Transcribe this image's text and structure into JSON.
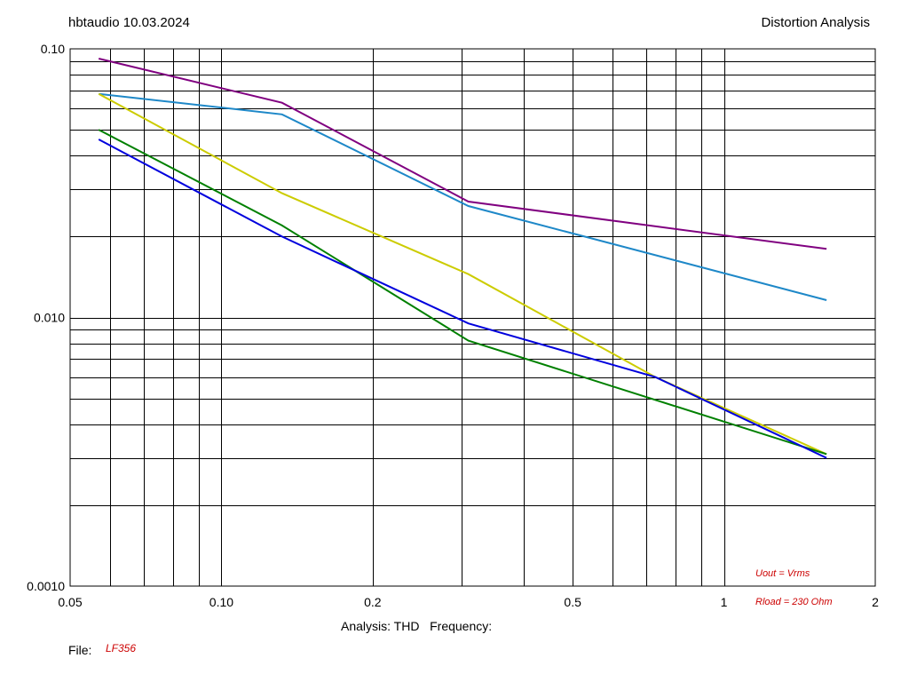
{
  "header": {
    "left": "hbtaudio 10.03.2024",
    "right": "Distortion Analysis"
  },
  "footer": {
    "analysis_label": "Analysis: THD   Frequency:",
    "file_label": "File:",
    "file_value": "LF356"
  },
  "annotations": {
    "uout": "Uout = Vrms",
    "rload": "Rload = 230 Ohm",
    "color": "#cc0000"
  },
  "chart_data": {
    "type": "line",
    "x_scale": "log",
    "y_scale": "log",
    "xlim": [
      0.05,
      2
    ],
    "ylim": [
      0.001,
      0.1
    ],
    "grid": true,
    "x_tick_labels": [
      {
        "value": 0.05,
        "label": "0.05"
      },
      {
        "value": 0.1,
        "label": "0.10"
      },
      {
        "value": 0.2,
        "label": "0.2"
      },
      {
        "value": 0.5,
        "label": "0.5"
      },
      {
        "value": 1,
        "label": "1"
      },
      {
        "value": 2,
        "label": "2"
      }
    ],
    "y_tick_labels": [
      {
        "value": 0.1,
        "label": "0.10"
      },
      {
        "value": 0.01,
        "label": "0.010"
      },
      {
        "value": 0.001,
        "label": "0.0010"
      }
    ],
    "series": [
      {
        "color": "#800080",
        "x": [
          0.057,
          0.132,
          0.31,
          1.6
        ],
        "y": [
          0.092,
          0.063,
          0.027,
          0.018
        ]
      },
      {
        "color": "#1e88c8",
        "x": [
          0.057,
          0.132,
          0.31,
          1.6
        ],
        "y": [
          0.068,
          0.057,
          0.026,
          0.0116
        ]
      },
      {
        "color": "#cccc00",
        "x": [
          0.057,
          0.132,
          0.31,
          0.73,
          1.6
        ],
        "y": [
          0.068,
          0.029,
          0.0145,
          0.006,
          0.0031
        ]
      },
      {
        "color": "#008000",
        "x": [
          0.057,
          0.132,
          0.31,
          1.6
        ],
        "y": [
          0.05,
          0.022,
          0.0082,
          0.0031
        ]
      },
      {
        "color": "#0000dd",
        "x": [
          0.057,
          0.132,
          0.31,
          0.73,
          1.6
        ],
        "y": [
          0.046,
          0.02,
          0.0095,
          0.006,
          0.003
        ]
      }
    ]
  }
}
